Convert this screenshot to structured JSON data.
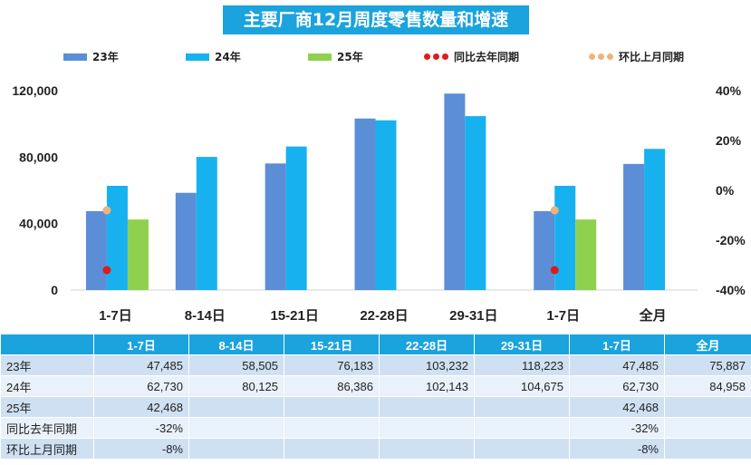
{
  "title": "主要厂商12月周度零售数量和增速",
  "legend": {
    "s23": "23年",
    "s24": "24年",
    "s25": "25年",
    "yoy": "同比去年同期",
    "mom": "环比上月同期"
  },
  "colors": {
    "s23": "#5b8ed6",
    "s24": "#18b1ef",
    "s25": "#8fd14f",
    "yoy": "#e01a1a",
    "mom": "#f0b27a",
    "header": "#1aa3dd"
  },
  "chart_data": {
    "type": "bar",
    "title": "主要厂商12月周度零售数量和增速",
    "categories": [
      "1-7日",
      "8-14日",
      "15-21日",
      "22-28日",
      "29-31日",
      "1-7日",
      "全月"
    ],
    "series": [
      {
        "name": "23年",
        "values": [
          47485,
          58505,
          76183,
          103232,
          118223,
          47485,
          75887
        ]
      },
      {
        "name": "24年",
        "values": [
          62730,
          80125,
          86386,
          102143,
          104675,
          62730,
          84958
        ]
      },
      {
        "name": "25年",
        "values": [
          42468,
          null,
          null,
          null,
          null,
          42468,
          null
        ]
      }
    ],
    "line_series": [
      {
        "name": "同比去年同期",
        "axis": "right",
        "values": [
          -32,
          null,
          null,
          null,
          null,
          -32,
          null
        ]
      },
      {
        "name": "环比上月同期",
        "axis": "right",
        "values": [
          -8,
          null,
          null,
          null,
          null,
          -8,
          null
        ]
      }
    ],
    "left_axis": {
      "ylim": [
        0,
        120000
      ],
      "ticks": [
        "0",
        "40,000",
        "80,000",
        "120,000"
      ]
    },
    "right_axis": {
      "ylim": [
        -40,
        40
      ],
      "ticks": [
        "-40%",
        "-20%",
        "0%",
        "20%",
        "40%"
      ]
    },
    "legend_position": "top"
  },
  "table": {
    "header": [
      "",
      "1-7日",
      "8-14日",
      "15-21日",
      "22-28日",
      "29-31日",
      "1-7日",
      "全月"
    ],
    "rows": [
      [
        "23年",
        "47,485",
        "58,505",
        "76,183",
        "103,232",
        "118,223",
        "47,485",
        "75,887"
      ],
      [
        "24年",
        "62,730",
        "80,125",
        "86,386",
        "102,143",
        "104,675",
        "62,730",
        "84,958"
      ],
      [
        "25年",
        "42,468",
        "",
        "",
        "",
        "",
        "42,468",
        ""
      ],
      [
        "同比去年同期",
        "-32%",
        "",
        "",
        "",
        "",
        "-32%",
        ""
      ],
      [
        "环比上月同期",
        "-8%",
        "",
        "",
        "",
        "",
        "-8%",
        ""
      ]
    ]
  }
}
